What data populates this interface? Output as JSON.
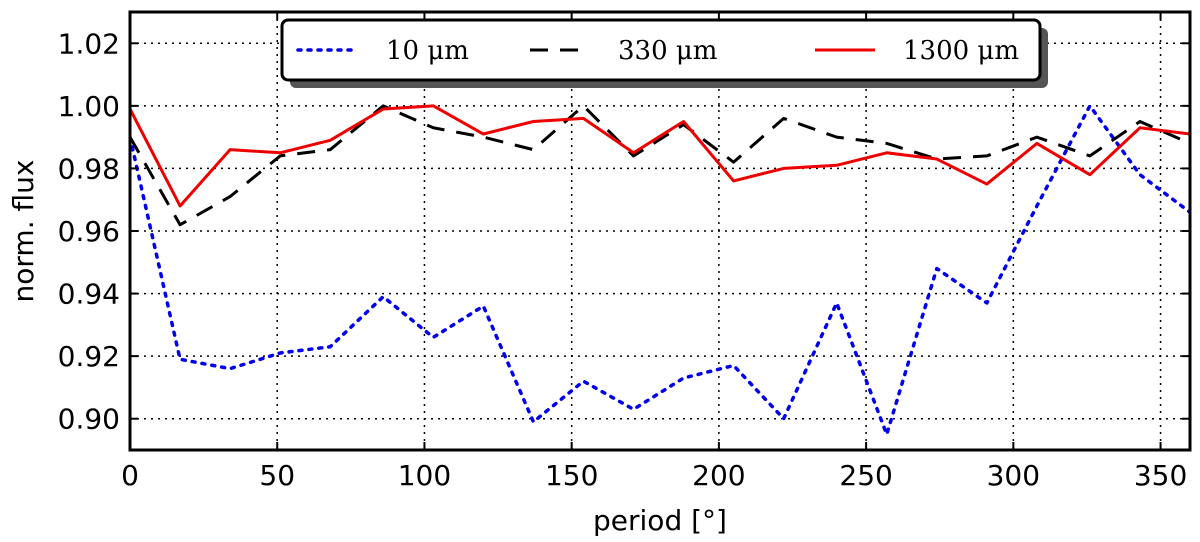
{
  "chart_data": {
    "type": "line",
    "xlabel": "period [°]",
    "ylabel": "norm. flux",
    "xlim": [
      0,
      360
    ],
    "ylim": [
      0.89,
      1.03
    ],
    "xticks": [
      "0",
      "50",
      "100",
      "150",
      "200",
      "250",
      "300",
      "350"
    ],
    "yticks": [
      "0.90",
      "0.92",
      "0.94",
      "0.96",
      "0.98",
      "1.00",
      "1.02"
    ],
    "grid": true,
    "legend_position": "top-center",
    "series": [
      {
        "name": "10 μm",
        "color": "#0000ee",
        "style": "dotted",
        "x": [
          0,
          17,
          34,
          51,
          68,
          86,
          103,
          120,
          137,
          154,
          171,
          188,
          205,
          222,
          240,
          257,
          274,
          291,
          308,
          326,
          343,
          360
        ],
        "y": [
          0.99,
          0.919,
          0.916,
          0.921,
          0.923,
          0.939,
          0.926,
          0.936,
          0.899,
          0.912,
          0.903,
          0.913,
          0.917,
          0.9,
          0.937,
          0.895,
          0.948,
          0.937,
          0.968,
          1.0,
          0.978,
          0.966
        ]
      },
      {
        "name": "330 μm",
        "color": "#000000",
        "style": "dashed",
        "x": [
          0,
          17,
          34,
          51,
          68,
          86,
          103,
          120,
          137,
          154,
          171,
          188,
          205,
          222,
          240,
          257,
          274,
          291,
          308,
          326,
          343,
          360
        ],
        "y": [
          0.99,
          0.962,
          0.971,
          0.984,
          0.986,
          1.0,
          0.993,
          0.99,
          0.986,
          1.0,
          0.984,
          0.994,
          0.982,
          0.996,
          0.99,
          0.988,
          0.983,
          0.984,
          0.99,
          0.984,
          0.995,
          0.988
        ]
      },
      {
        "name": "1300 μm",
        "color": "#ee0000",
        "style": "solid",
        "x": [
          0,
          17,
          34,
          51,
          68,
          86,
          103,
          120,
          137,
          154,
          171,
          188,
          205,
          222,
          240,
          257,
          274,
          291,
          308,
          326,
          343,
          360
        ],
        "y": [
          0.999,
          0.968,
          0.986,
          0.985,
          0.989,
          0.999,
          1.0,
          0.991,
          0.995,
          0.996,
          0.985,
          0.995,
          0.976,
          0.98,
          0.981,
          0.985,
          0.983,
          0.975,
          0.988,
          0.978,
          0.993,
          0.991
        ]
      }
    ]
  }
}
